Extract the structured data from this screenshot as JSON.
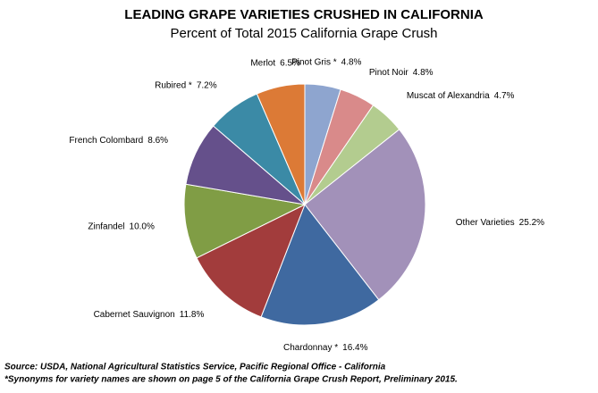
{
  "chart_data": {
    "type": "pie",
    "title": "LEADING GRAPE VARIETIES CRUSHED IN CALIFORNIA",
    "subtitle": "Percent of Total 2015 California Grape Crush",
    "categories": [
      "Pinot Gris *",
      "Pinot Noir",
      "Muscat of Alexandria",
      "Other Varieties",
      "Chardonnay *",
      "Cabernet Sauvignon",
      "Zinfandel",
      "French Colombard",
      "Rubired *",
      "Merlot"
    ],
    "values": [
      4.8,
      4.8,
      4.7,
      25.2,
      16.4,
      11.8,
      10.0,
      8.6,
      7.2,
      6.5
    ],
    "value_labels": [
      "4.8%",
      "4.8%",
      "4.7%",
      "25.2%",
      "16.4%",
      "11.8%",
      "10.0%",
      "8.6%",
      "7.2%",
      "6.5%"
    ],
    "colors": [
      "#8ea5cf",
      "#d98a8a",
      "#b3cc8f",
      "#a291b9",
      "#3f69a0",
      "#a23c3c",
      "#809d45",
      "#65508b",
      "#3b8aa6",
      "#dc7a36"
    ],
    "source": "Source: USDA, National Agricultural Statistics Service, Pacific Regional Office - California",
    "footnote": "*Synonyms for variety names are shown on page 5 of the California Grape Crush Report, Preliminary 2015."
  }
}
